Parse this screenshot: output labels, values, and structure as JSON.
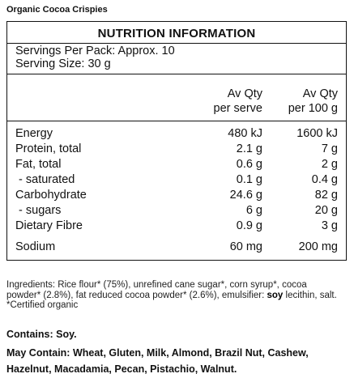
{
  "product_name": "Organic Cocoa Crispies",
  "panel": {
    "title": "NUTRITION INFORMATION",
    "servings_per_pack": "Servings Per Pack: Approx. 10",
    "serving_size": "Serving Size: 30 g",
    "col1_line1": "Av Qty",
    "col1_line2": "per serve",
    "col2_line1": "Av Qty",
    "col2_line2": "per 100 g",
    "rows": [
      {
        "label": "Energy",
        "per_serve": "480 kJ",
        "per_100g": "1600 kJ"
      },
      {
        "label": "Protein, total",
        "per_serve": "2.1 g",
        "per_100g": "7 g"
      },
      {
        "label": "Fat, total",
        "per_serve": "0.6 g",
        "per_100g": "2 g"
      },
      {
        "label": " - saturated",
        "per_serve": "0.1 g",
        "per_100g": "0.4 g"
      },
      {
        "label": "Carbohydrate",
        "per_serve": "24.6 g",
        "per_100g": "82 g"
      },
      {
        "label": " - sugars",
        "per_serve": "6 g",
        "per_100g": "20 g"
      },
      {
        "label": "Dietary Fibre",
        "per_serve": "0.9 g",
        "per_100g": "3 g"
      },
      {
        "label": "Sodium",
        "per_serve": "60 mg",
        "per_100g": "200 mg"
      }
    ]
  },
  "ingredients": {
    "prefix": "Ingredients: Rice flour* (75%), unrefined cane sugar*, corn syrup*, cocoa powder* (2.8%), fat reduced cocoa powder* (2.6%), emulsifier: ",
    "bold_word": "soy",
    "suffix": " lecithin, salt. *Certified organic"
  },
  "allergens": {
    "contains": "Contains: Soy.",
    "may_contain": "May Contain: Wheat, Gluten, Milk, Almond, Brazil Nut, Cashew, Hazelnut, Macadamia, Pecan, Pistachio, Walnut."
  }
}
